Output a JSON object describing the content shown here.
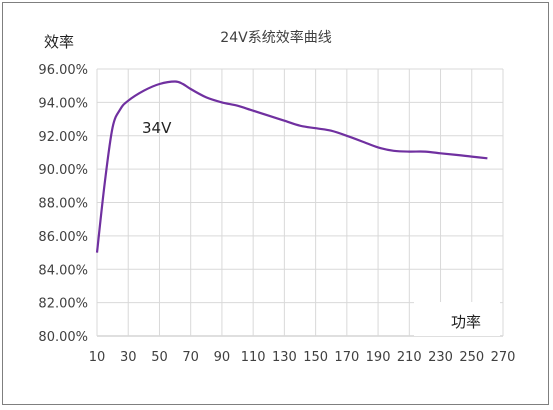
{
  "chart_data": {
    "type": "line",
    "title": "24V系统效率曲线",
    "ylabel": "效率",
    "xlabel": "功率",
    "xlim": [
      10,
      270
    ],
    "ylim": [
      80,
      96
    ],
    "x_ticks": [
      "10",
      "30",
      "50",
      "70",
      "90",
      "110",
      "130",
      "150",
      "170",
      "190",
      "210",
      "230",
      "250",
      "270"
    ],
    "y_ticks": [
      "80.00%",
      "82.00%",
      "84.00%",
      "86.00%",
      "88.00%",
      "90.00%",
      "92.00%",
      "94.00%",
      "96.00%"
    ],
    "grid": true,
    "series": [
      {
        "name": "34V",
        "color": "#7030a0",
        "x": [
          10,
          15,
          20,
          25,
          30,
          40,
          50,
          60,
          65,
          70,
          80,
          90,
          100,
          110,
          120,
          130,
          140,
          150,
          160,
          170,
          180,
          190,
          200,
          210,
          220,
          230,
          240,
          250,
          260
        ],
        "y": [
          85.0,
          89.2,
          92.5,
          93.6,
          94.1,
          94.7,
          95.1,
          95.25,
          95.1,
          94.8,
          94.3,
          94.0,
          93.8,
          93.5,
          93.2,
          92.9,
          92.6,
          92.45,
          92.3,
          92.0,
          91.65,
          91.3,
          91.1,
          91.05,
          91.05,
          90.95,
          90.85,
          90.75,
          90.65
        ]
      }
    ]
  }
}
